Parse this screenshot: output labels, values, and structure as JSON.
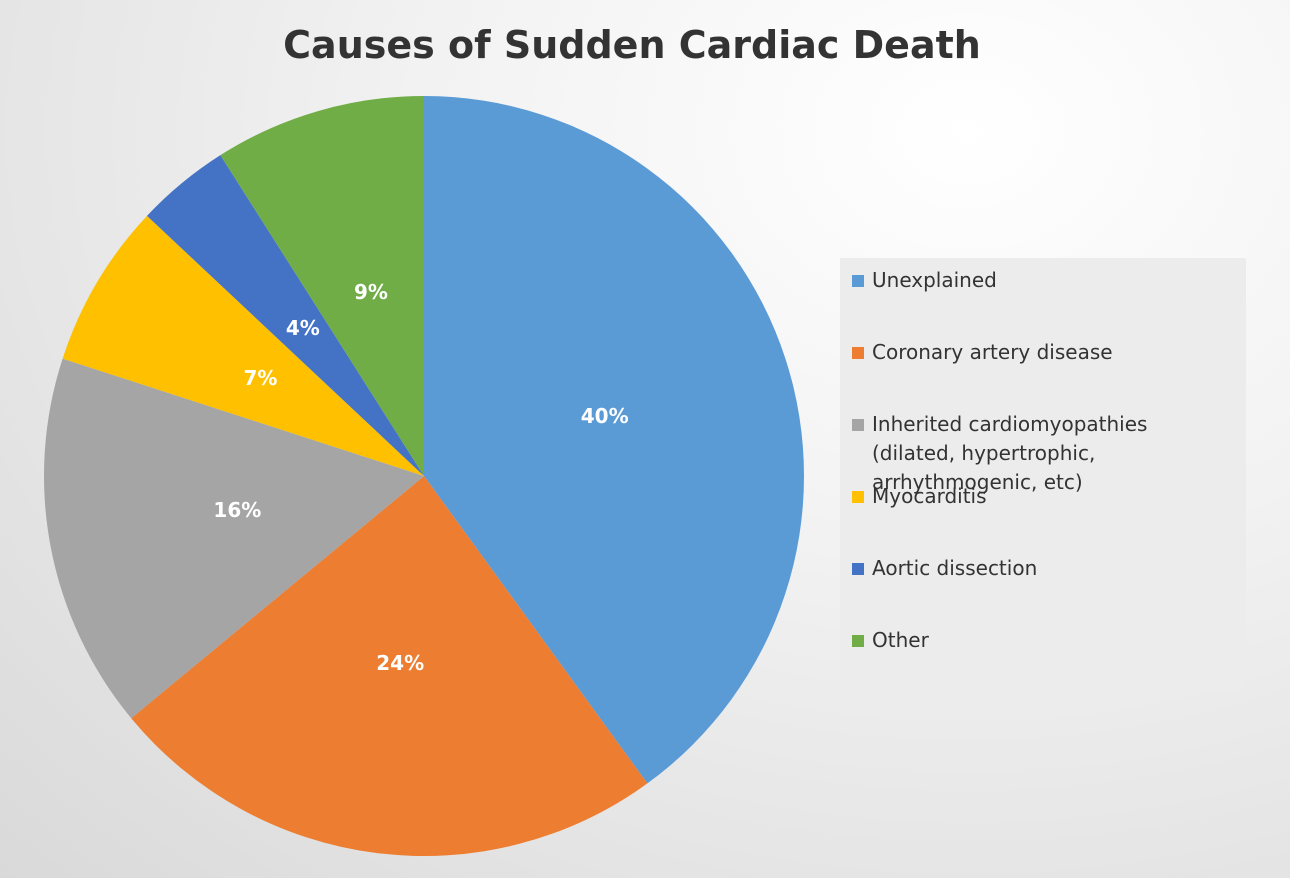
{
  "chart_data": {
    "type": "pie",
    "title": "Causes of Sudden Cardiac Death",
    "categories": [
      "Unexplained",
      "Coronary artery disease",
      "Inherited cardiomyopathies (dilated, hypertrophic, arrhythmogenic, etc)",
      "Myocarditis",
      "Aortic dissection",
      "Other"
    ],
    "values": [
      40,
      24,
      16,
      7,
      4,
      9
    ],
    "value_labels": [
      "40%",
      "24%",
      "16%",
      "7%",
      "4%",
      "9%"
    ],
    "colors": [
      "#5b9bd5",
      "#ed7d31",
      "#a5a5a5",
      "#ffc000",
      "#4472c4",
      "#70ad47"
    ],
    "legend": "right"
  }
}
